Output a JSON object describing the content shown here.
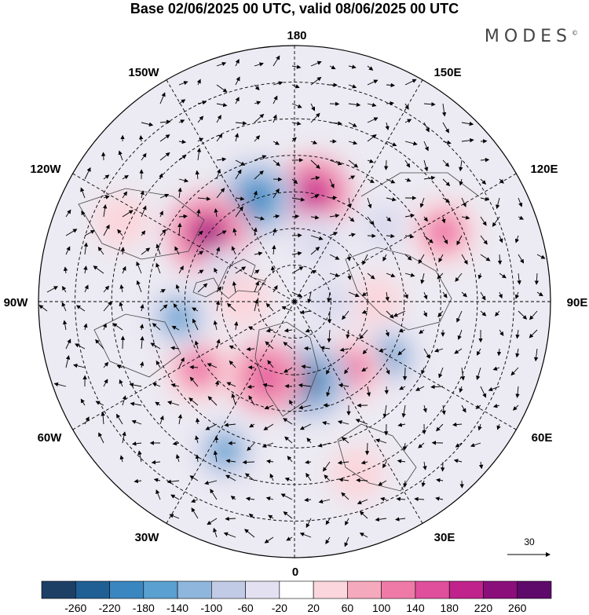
{
  "title": "Base 02/06/2025 00 UTC, valid 08/06/2025 00 UTC",
  "brand": {
    "name": "MODES",
    "mark": "©"
  },
  "map": {
    "projection": "north-polar-stereographic",
    "longitude_labels": {
      "lon_180": "180",
      "lon_150E": "150E",
      "lon_120E": "120E",
      "lon_90E": "90E",
      "lon_60E": "60E",
      "lon_30E": "30E",
      "lon_0": "0",
      "lon_30W": "30W",
      "lon_60W": "60W",
      "lon_90W": "90W",
      "lon_120W": "120W",
      "lon_150W": "150W"
    },
    "anomaly_cells": [
      {
        "lon": 170,
        "lat": 60,
        "value": 200
      },
      {
        "lon": 200,
        "lat": 60,
        "value": -200
      },
      {
        "lon": 232,
        "lat": 60,
        "value": 240
      },
      {
        "lon": 115,
        "lat": 45,
        "value": 140
      },
      {
        "lon": 160,
        "lat": 72,
        "value": -60
      },
      {
        "lon": 90,
        "lat": 68,
        "value": 60
      },
      {
        "lon": 60,
        "lat": 60,
        "value": -140
      },
      {
        "lon": 40,
        "lat": 66,
        "value": 140
      },
      {
        "lon": 10,
        "lat": 68,
        "value": -220
      },
      {
        "lon": 340,
        "lat": 68,
        "value": 180
      },
      {
        "lon": 305,
        "lat": 58,
        "value": 140
      },
      {
        "lon": 335,
        "lat": 45,
        "value": -140
      },
      {
        "lon": 278,
        "lat": 58,
        "value": -140
      },
      {
        "lon": 248,
        "lat": 70,
        "value": -60
      },
      {
        "lon": 268,
        "lat": 76,
        "value": 60
      },
      {
        "lon": 245,
        "lat": 38,
        "value": 60
      },
      {
        "lon": 20,
        "lat": 40,
        "value": 60
      },
      {
        "lon": 130,
        "lat": 58,
        "value": -60
      },
      {
        "lon": 90,
        "lat": 80,
        "value": -60
      }
    ]
  },
  "wind_reference": {
    "label": "30"
  },
  "colorbar": {
    "ticks": [
      "-260",
      "-220",
      "-180",
      "-140",
      "-100",
      "-60",
      "-20",
      "20",
      "60",
      "100",
      "140",
      "180",
      "220",
      "260"
    ],
    "colors": [
      "#1d3f66",
      "#1f5f94",
      "#3a86c0",
      "#5aa0d0",
      "#8fb6dc",
      "#c1cbe6",
      "#e3e1f1",
      "#ffffff",
      "#fbd6dc",
      "#f5a9bd",
      "#ef7aa8",
      "#e04f9b",
      "#c0238c",
      "#8a0f7a",
      "#5e0a6a"
    ]
  }
}
